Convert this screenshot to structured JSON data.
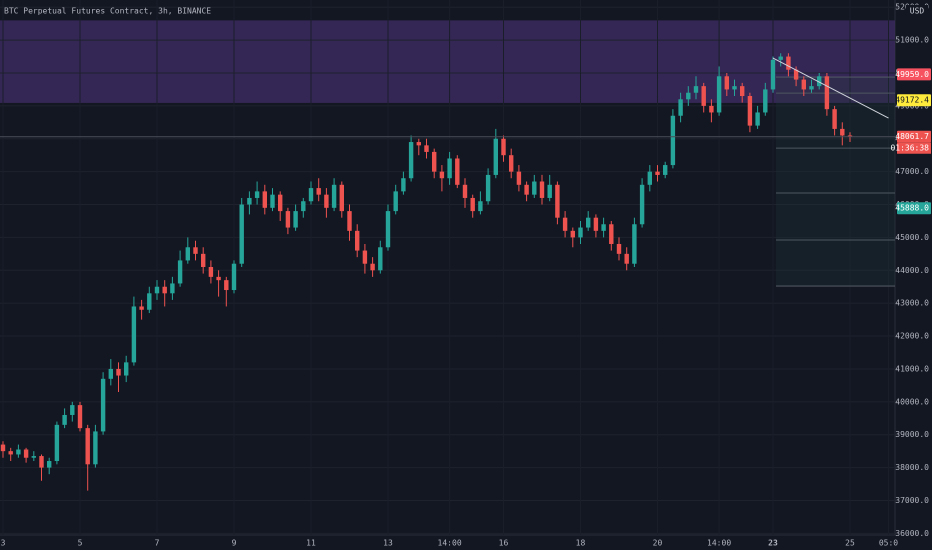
{
  "chart_data": {
    "type": "candlestick",
    "title": "BTC Perpetual Futures Contract, 3h, BINANCE",
    "currency": "USD",
    "up_color": "#26a69a",
    "down_color": "#ef5350",
    "grid": true,
    "ylim": [
      35950,
      52220
    ],
    "yticks": [
      {
        "value": 36000,
        "label": "36000.0"
      },
      {
        "value": 37000,
        "label": "37000.0"
      },
      {
        "value": 38000,
        "label": "38000.0"
      },
      {
        "value": 39000,
        "label": "39000.0"
      },
      {
        "value": 40000,
        "label": "40000.0"
      },
      {
        "value": 41000,
        "label": "41000.0"
      },
      {
        "value": 42000,
        "label": "42000.0"
      },
      {
        "value": 43000,
        "label": "43000.0"
      },
      {
        "value": 44000,
        "label": "44000.0"
      },
      {
        "value": 45000,
        "label": "45000.0"
      },
      {
        "value": 46000,
        "label": "46000.0"
      },
      {
        "value": 47000,
        "label": "47000.0"
      },
      {
        "value": 48000,
        "label": "48000.0"
      },
      {
        "value": 49000,
        "label": "49000.0"
      },
      {
        "value": 50000,
        "label": "50000.0"
      },
      {
        "value": 51000,
        "label": "51000.0"
      },
      {
        "value": 52000,
        "label": "52000.0"
      }
    ],
    "categories": [
      "3",
      null,
      null,
      null,
      null,
      null,
      null,
      null,
      null,
      null,
      "5",
      null,
      null,
      null,
      null,
      null,
      null,
      null,
      null,
      null,
      "7",
      null,
      null,
      null,
      null,
      null,
      null,
      null,
      null,
      null,
      "9",
      null,
      null,
      null,
      null,
      null,
      null,
      null,
      null,
      null,
      "11",
      null,
      null,
      null,
      null,
      null,
      null,
      null,
      null,
      null,
      "13",
      null,
      null,
      null,
      null,
      null,
      null,
      null,
      "14:00",
      null,
      null,
      null,
      null,
      null,
      null,
      "16",
      null,
      null,
      null,
      null,
      null,
      null,
      null,
      null,
      null,
      "18",
      null,
      null,
      null,
      null,
      null,
      null,
      null,
      null,
      null,
      "20",
      null,
      null,
      null,
      null,
      null,
      null,
      null,
      "14:00",
      null,
      null,
      null,
      null,
      null,
      null,
      "23",
      null,
      null,
      null,
      null,
      null,
      null,
      null,
      null,
      null,
      "25",
      null,
      null,
      null,
      null,
      "05:0"
    ],
    "ohlc": [
      [
        38700,
        38800,
        38300,
        38500
      ],
      [
        38500,
        38600,
        38200,
        38400
      ],
      [
        38400,
        38700,
        38300,
        38550
      ],
      [
        38550,
        38600,
        38150,
        38300
      ],
      [
        38300,
        38500,
        38200,
        38350
      ],
      [
        38350,
        38400,
        37600,
        38000
      ],
      [
        38000,
        38300,
        37800,
        38200
      ],
      [
        38200,
        39400,
        38100,
        39300
      ],
      [
        39300,
        39800,
        39200,
        39600
      ],
      [
        39600,
        40000,
        39400,
        39900
      ],
      [
        39900,
        40000,
        39100,
        39200
      ],
      [
        39200,
        39300,
        37300,
        38100
      ],
      [
        38100,
        39300,
        38000,
        39100
      ],
      [
        39100,
        40900,
        39000,
        40700
      ],
      [
        40700,
        41300,
        40500,
        41000
      ],
      [
        41000,
        41200,
        40300,
        40800
      ],
      [
        40800,
        41400,
        40600,
        41200
      ],
      [
        41200,
        43200,
        41100,
        42900
      ],
      [
        42900,
        43100,
        42500,
        42800
      ],
      [
        42800,
        43500,
        42700,
        43300
      ],
      [
        43300,
        43700,
        43100,
        43500
      ],
      [
        43500,
        43700,
        42900,
        43300
      ],
      [
        43300,
        43800,
        43100,
        43600
      ],
      [
        43600,
        44600,
        43500,
        44300
      ],
      [
        44300,
        45000,
        44200,
        44700
      ],
      [
        44700,
        44900,
        44300,
        44500
      ],
      [
        44500,
        44700,
        43900,
        44100
      ],
      [
        44100,
        44300,
        43600,
        43800
      ],
      [
        43800,
        44000,
        43200,
        43700
      ],
      [
        43700,
        43800,
        42900,
        43400
      ],
      [
        43400,
        44300,
        43300,
        44200
      ],
      [
        44200,
        46200,
        44100,
        46000
      ],
      [
        46000,
        46400,
        45700,
        46200
      ],
      [
        46200,
        46700,
        46000,
        46400
      ],
      [
        46400,
        46600,
        45700,
        45900
      ],
      [
        45900,
        46500,
        45800,
        46300
      ],
      [
        46300,
        46400,
        45500,
        45800
      ],
      [
        45800,
        45900,
        45100,
        45300
      ],
      [
        45300,
        46000,
        45200,
        45800
      ],
      [
        45800,
        46200,
        45600,
        46100
      ],
      [
        46100,
        46700,
        46000,
        46500
      ],
      [
        46500,
        46800,
        46100,
        46300
      ],
      [
        46300,
        46500,
        45600,
        45900
      ],
      [
        45900,
        46800,
        45800,
        46600
      ],
      [
        46600,
        46700,
        45600,
        45800
      ],
      [
        45800,
        46000,
        44900,
        45200
      ],
      [
        45200,
        45400,
        44400,
        44600
      ],
      [
        44600,
        44800,
        43900,
        44200
      ],
      [
        44200,
        44400,
        43800,
        44000
      ],
      [
        44000,
        44900,
        43900,
        44700
      ],
      [
        44700,
        46000,
        44600,
        45800
      ],
      [
        45800,
        46600,
        45700,
        46400
      ],
      [
        46400,
        47000,
        46300,
        46800
      ],
      [
        46800,
        48100,
        46700,
        47900
      ],
      [
        47900,
        48000,
        47500,
        47800
      ],
      [
        47800,
        48000,
        47400,
        47600
      ],
      [
        47600,
        47700,
        46800,
        47000
      ],
      [
        47000,
        47200,
        46400,
        46800
      ],
      [
        46800,
        47600,
        46600,
        47400
      ],
      [
        47400,
        47500,
        46500,
        46600
      ],
      [
        46600,
        46800,
        45900,
        46200
      ],
      [
        46200,
        46300,
        45600,
        45800
      ],
      [
        45800,
        46400,
        45700,
        46100
      ],
      [
        46100,
        47100,
        46000,
        46900
      ],
      [
        46900,
        48300,
        46800,
        48000
      ],
      [
        48000,
        48100,
        47300,
        47500
      ],
      [
        47500,
        47700,
        46800,
        47000
      ],
      [
        47000,
        47200,
        46400,
        46600
      ],
      [
        46600,
        46700,
        46100,
        46300
      ],
      [
        46300,
        46900,
        46200,
        46700
      ],
      [
        46700,
        46900,
        46000,
        46200
      ],
      [
        46200,
        46900,
        46100,
        46600
      ],
      [
        46600,
        46700,
        45400,
        45600
      ],
      [
        45600,
        45800,
        45000,
        45200
      ],
      [
        45200,
        45300,
        44700,
        45000
      ],
      [
        45000,
        45500,
        44800,
        45300
      ],
      [
        45300,
        45800,
        45200,
        45600
      ],
      [
        45600,
        45700,
        45000,
        45200
      ],
      [
        45200,
        45600,
        45000,
        45400
      ],
      [
        45400,
        45500,
        44600,
        44800
      ],
      [
        44800,
        45000,
        44300,
        44500
      ],
      [
        44500,
        44700,
        44000,
        44200
      ],
      [
        44200,
        45600,
        44100,
        45400
      ],
      [
        45400,
        46800,
        45300,
        46600
      ],
      [
        46600,
        47200,
        46400,
        47000
      ],
      [
        47000,
        47200,
        46700,
        46900
      ],
      [
        46900,
        47300,
        46800,
        47200
      ],
      [
        47200,
        48900,
        47100,
        48700
      ],
      [
        48700,
        49400,
        48500,
        49200
      ],
      [
        49200,
        49600,
        49000,
        49400
      ],
      [
        49400,
        49900,
        49200,
        49600
      ],
      [
        49600,
        49700,
        48800,
        49000
      ],
      [
        49000,
        49200,
        48500,
        48800
      ],
      [
        48800,
        50200,
        48700,
        49900
      ],
      [
        49900,
        50000,
        49300,
        49500
      ],
      [
        49500,
        49800,
        49300,
        49600
      ],
      [
        49600,
        49700,
        49100,
        49300
      ],
      [
        49300,
        49400,
        48200,
        48400
      ],
      [
        48400,
        49000,
        48300,
        48800
      ],
      [
        48800,
        49700,
        48700,
        49500
      ],
      [
        49500,
        50500,
        49400,
        50400
      ],
      [
        50400,
        50600,
        50200,
        50500
      ],
      [
        50500,
        50600,
        49900,
        50100
      ],
      [
        50100,
        50200,
        49600,
        49800
      ],
      [
        49800,
        49900,
        49300,
        49500
      ],
      [
        49500,
        49800,
        49400,
        49600
      ],
      [
        49600,
        50000,
        49500,
        49900
      ],
      [
        49900,
        50000,
        48700,
        48900
      ],
      [
        48900,
        49000,
        48100,
        48300
      ],
      [
        48300,
        48500,
        47800,
        48100
      ],
      [
        48100,
        48200,
        47900,
        48061.7
      ],
      null,
      null,
      null,
      null,
      null
    ],
    "zone": {
      "range": [
        49090,
        51600
      ],
      "color": "#3b2a5e"
    },
    "trend_line": [
      50453,
      48629
    ],
    "levels": [
      49875,
      49389,
      47717,
      46350,
      44921,
      43523
    ],
    "price_labels": [
      {
        "value": 49959,
        "label": "49959.0",
        "color": "#f7525f",
        "text_color": "#ffffff"
      },
      {
        "value": 49172.4,
        "label": "49172.4",
        "color": "#ffeb3b",
        "text_color": "#131722"
      },
      {
        "value": 48061.7,
        "label": "48061.7",
        "color": "#ef5350",
        "text_color": "#ffffff"
      },
      {
        "value": 45888,
        "label": "45888.0",
        "color": "#26a69a",
        "text_color": "#ffffff"
      }
    ],
    "countdown": "01:36:38"
  }
}
